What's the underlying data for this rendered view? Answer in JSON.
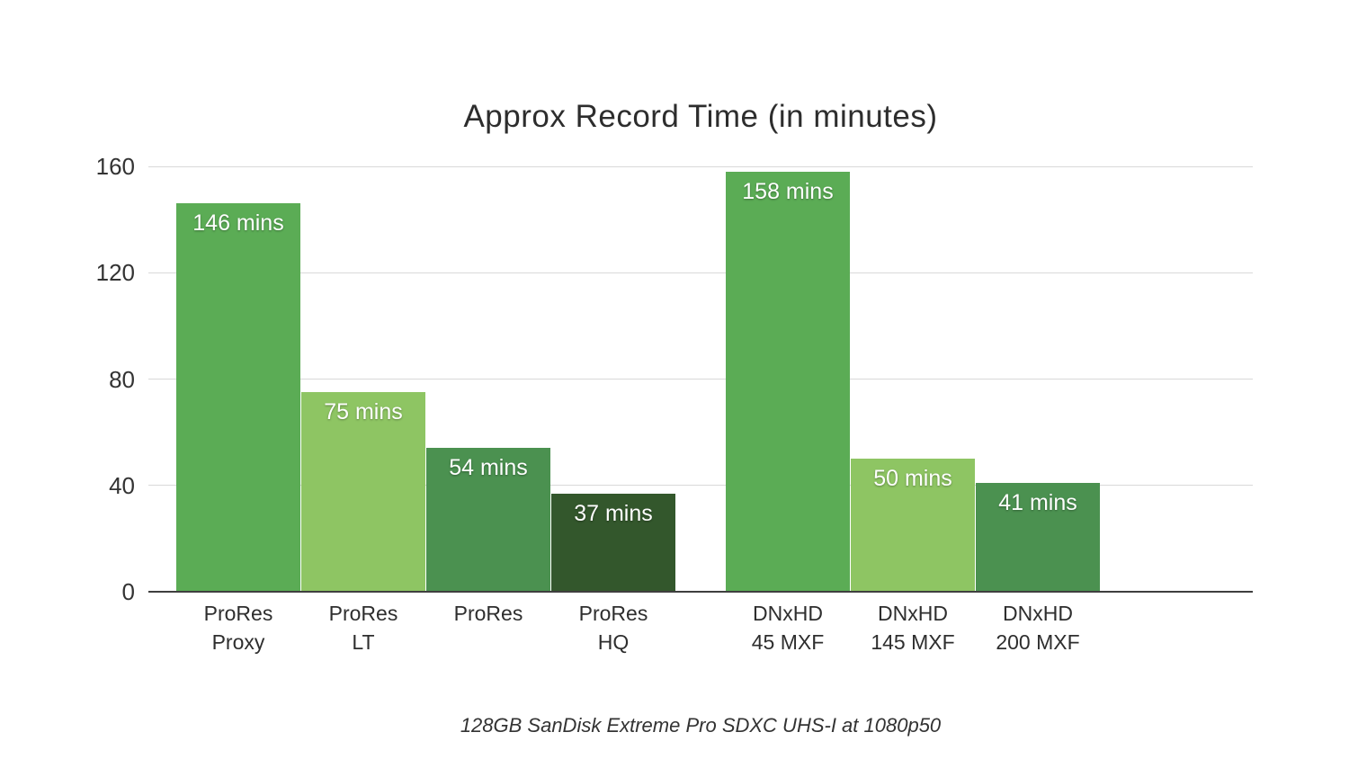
{
  "chart_data": {
    "type": "bar",
    "title": "Approx Record Time (in minutes)",
    "caption": "128GB SanDisk Extreme Pro SDXC UHS-I at 1080p50",
    "xlabel": "",
    "ylabel": "",
    "ylim": [
      0,
      160
    ],
    "yticks": [
      0,
      40,
      80,
      120,
      160
    ],
    "grid": true,
    "legend": "none",
    "value_unit": "mins",
    "colors": {
      "green_mid": "#5BAC55",
      "green_light": "#8EC563",
      "green_dark": "#4B9150",
      "green_darkest": "#33572C",
      "gridline": "#d9d9d9",
      "axis_line": "#3f3f3f",
      "value_text": "#ffffff"
    },
    "groups": [
      {
        "name": "ProRes",
        "bars": [
          {
            "label_lines": [
              "ProRes",
              "Proxy"
            ],
            "value": 146,
            "value_label": "146 mins",
            "color": "#5BAC55"
          },
          {
            "label_lines": [
              "ProRes",
              "LT"
            ],
            "value": 75,
            "value_label": "75 mins",
            "color": "#8EC563"
          },
          {
            "label_lines": [
              "ProRes"
            ],
            "value": 54,
            "value_label": "54 mins",
            "color": "#4B9150"
          },
          {
            "label_lines": [
              "ProRes",
              "HQ"
            ],
            "value": 37,
            "value_label": "37 mins",
            "color": "#33572C"
          }
        ]
      },
      {
        "name": "DNxHD",
        "bars": [
          {
            "label_lines": [
              "DNxHD",
              "45 MXF"
            ],
            "value": 158,
            "value_label": "158 mins",
            "color": "#5BAC55"
          },
          {
            "label_lines": [
              "DNxHD",
              "145 MXF"
            ],
            "value": 50,
            "value_label": "50 mins",
            "color": "#8EC563"
          },
          {
            "label_lines": [
              "DNxHD",
              "200 MXF"
            ],
            "value": 41,
            "value_label": "41 mins",
            "color": "#4B9150"
          }
        ]
      }
    ]
  }
}
